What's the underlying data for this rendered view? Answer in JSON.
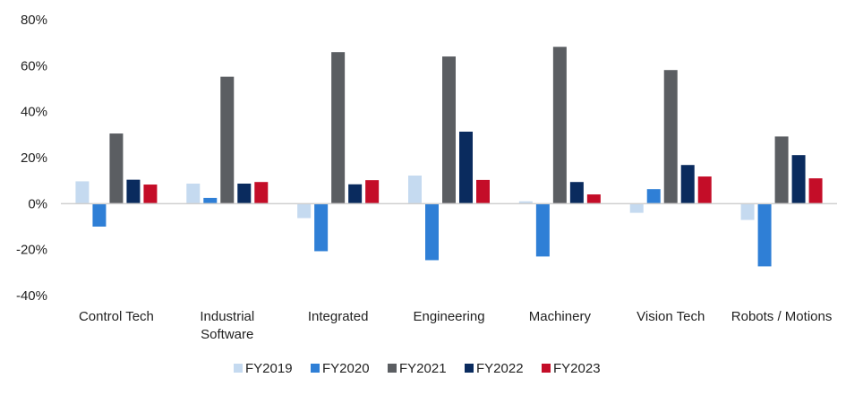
{
  "chart_data": {
    "type": "bar",
    "title": "",
    "xlabel": "",
    "ylabel": "",
    "ylim": [
      -40,
      80
    ],
    "yticks": [
      80,
      60,
      40,
      20,
      0,
      -20,
      -40
    ],
    "ytick_labels": [
      "80%",
      "60%",
      "40%",
      "20%",
      "0%",
      "-20%",
      "-40%"
    ],
    "grid": false,
    "legend_position": "bottom",
    "categories": [
      [
        "Control Tech"
      ],
      [
        "Industrial",
        "Software"
      ],
      [
        "Integrated"
      ],
      [
        "Engineering"
      ],
      [
        "Machinery"
      ],
      [
        "Vision Tech"
      ],
      [
        "Robots / Motions"
      ]
    ],
    "series": [
      {
        "name": "FY2019",
        "color": "#c5daf0",
        "values": [
          9.7,
          8.7,
          -6.3,
          12.2,
          1.0,
          -4.0,
          -7.1
        ]
      },
      {
        "name": "FY2020",
        "color": "#2f7fd6",
        "values": [
          -10.0,
          2.5,
          -20.7,
          -24.6,
          -23.0,
          6.3,
          -27.3
        ]
      },
      {
        "name": "FY2021",
        "color": "#5b5e62",
        "values": [
          30.5,
          55.2,
          65.9,
          64.0,
          68.2,
          58.1,
          29.2
        ]
      },
      {
        "name": "FY2022",
        "color": "#0a2b5e",
        "values": [
          10.4,
          8.7,
          8.4,
          31.3,
          9.4,
          16.8,
          21.1
        ]
      },
      {
        "name": "FY2023",
        "color": "#c40d28",
        "values": [
          8.3,
          9.4,
          10.2,
          10.3,
          4.0,
          11.8,
          11.0
        ]
      }
    ],
    "axis_color": "#d0d0d0"
  }
}
